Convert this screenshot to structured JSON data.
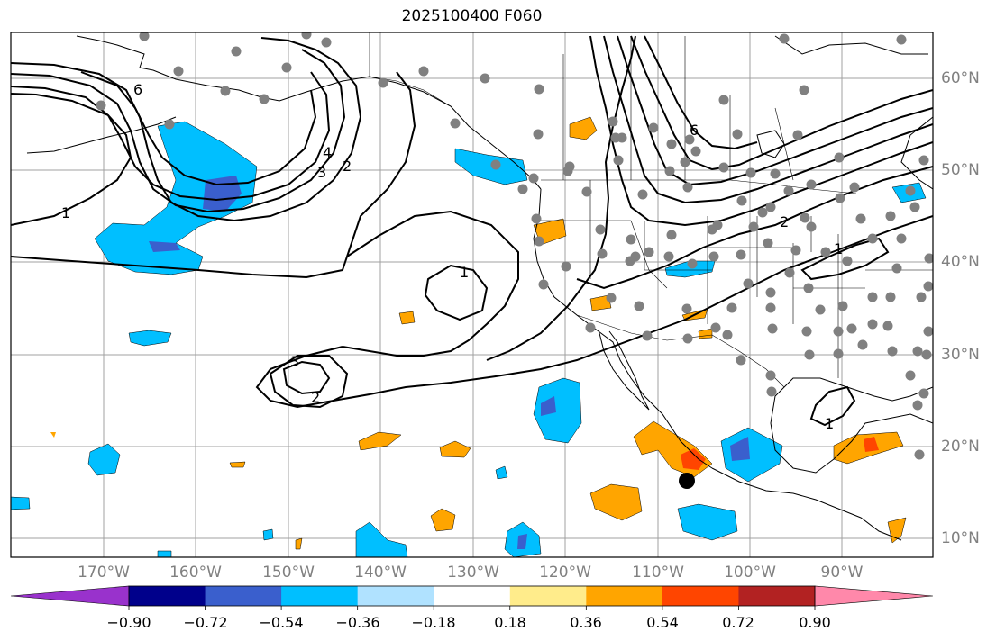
{
  "title": "2025100400 F060",
  "map": {
    "lon_labels": [
      {
        "label": "170°W"
      },
      {
        "label": "160°W"
      },
      {
        "label": "150°W"
      },
      {
        "label": "140°W"
      },
      {
        "label": "130°W"
      },
      {
        "label": "120°W"
      },
      {
        "label": "110°W"
      },
      {
        "label": "100°W"
      },
      {
        "label": "90°W"
      }
    ],
    "lat_labels": [
      {
        "label": "60°N"
      },
      {
        "label": "50°N"
      },
      {
        "label": "40°N"
      },
      {
        "label": "30°N"
      },
      {
        "label": "20°N"
      },
      {
        "label": "10°N"
      }
    ],
    "contour_labels": [
      "1",
      "2",
      "3",
      "4",
      "6"
    ],
    "colors": {
      "coastline": "#000000",
      "grid": "#a0a0a0",
      "contour": "#000000",
      "station_dot": "#808080",
      "marker": "#000000"
    }
  },
  "colorbar": {
    "ticks": [
      "−0.90",
      "−0.72",
      "−0.54",
      "−0.36",
      "−0.18",
      "0.18",
      "0.36",
      "0.54",
      "0.72",
      "0.90"
    ],
    "colors": [
      "#9932cc",
      "#00008b",
      "#3a5fcd",
      "#00bfff",
      "#b0e2ff",
      "#ffffff",
      "#ffec8b",
      "#ffa500",
      "#ff4500",
      "#b22222",
      "#ff88aa"
    ]
  }
}
